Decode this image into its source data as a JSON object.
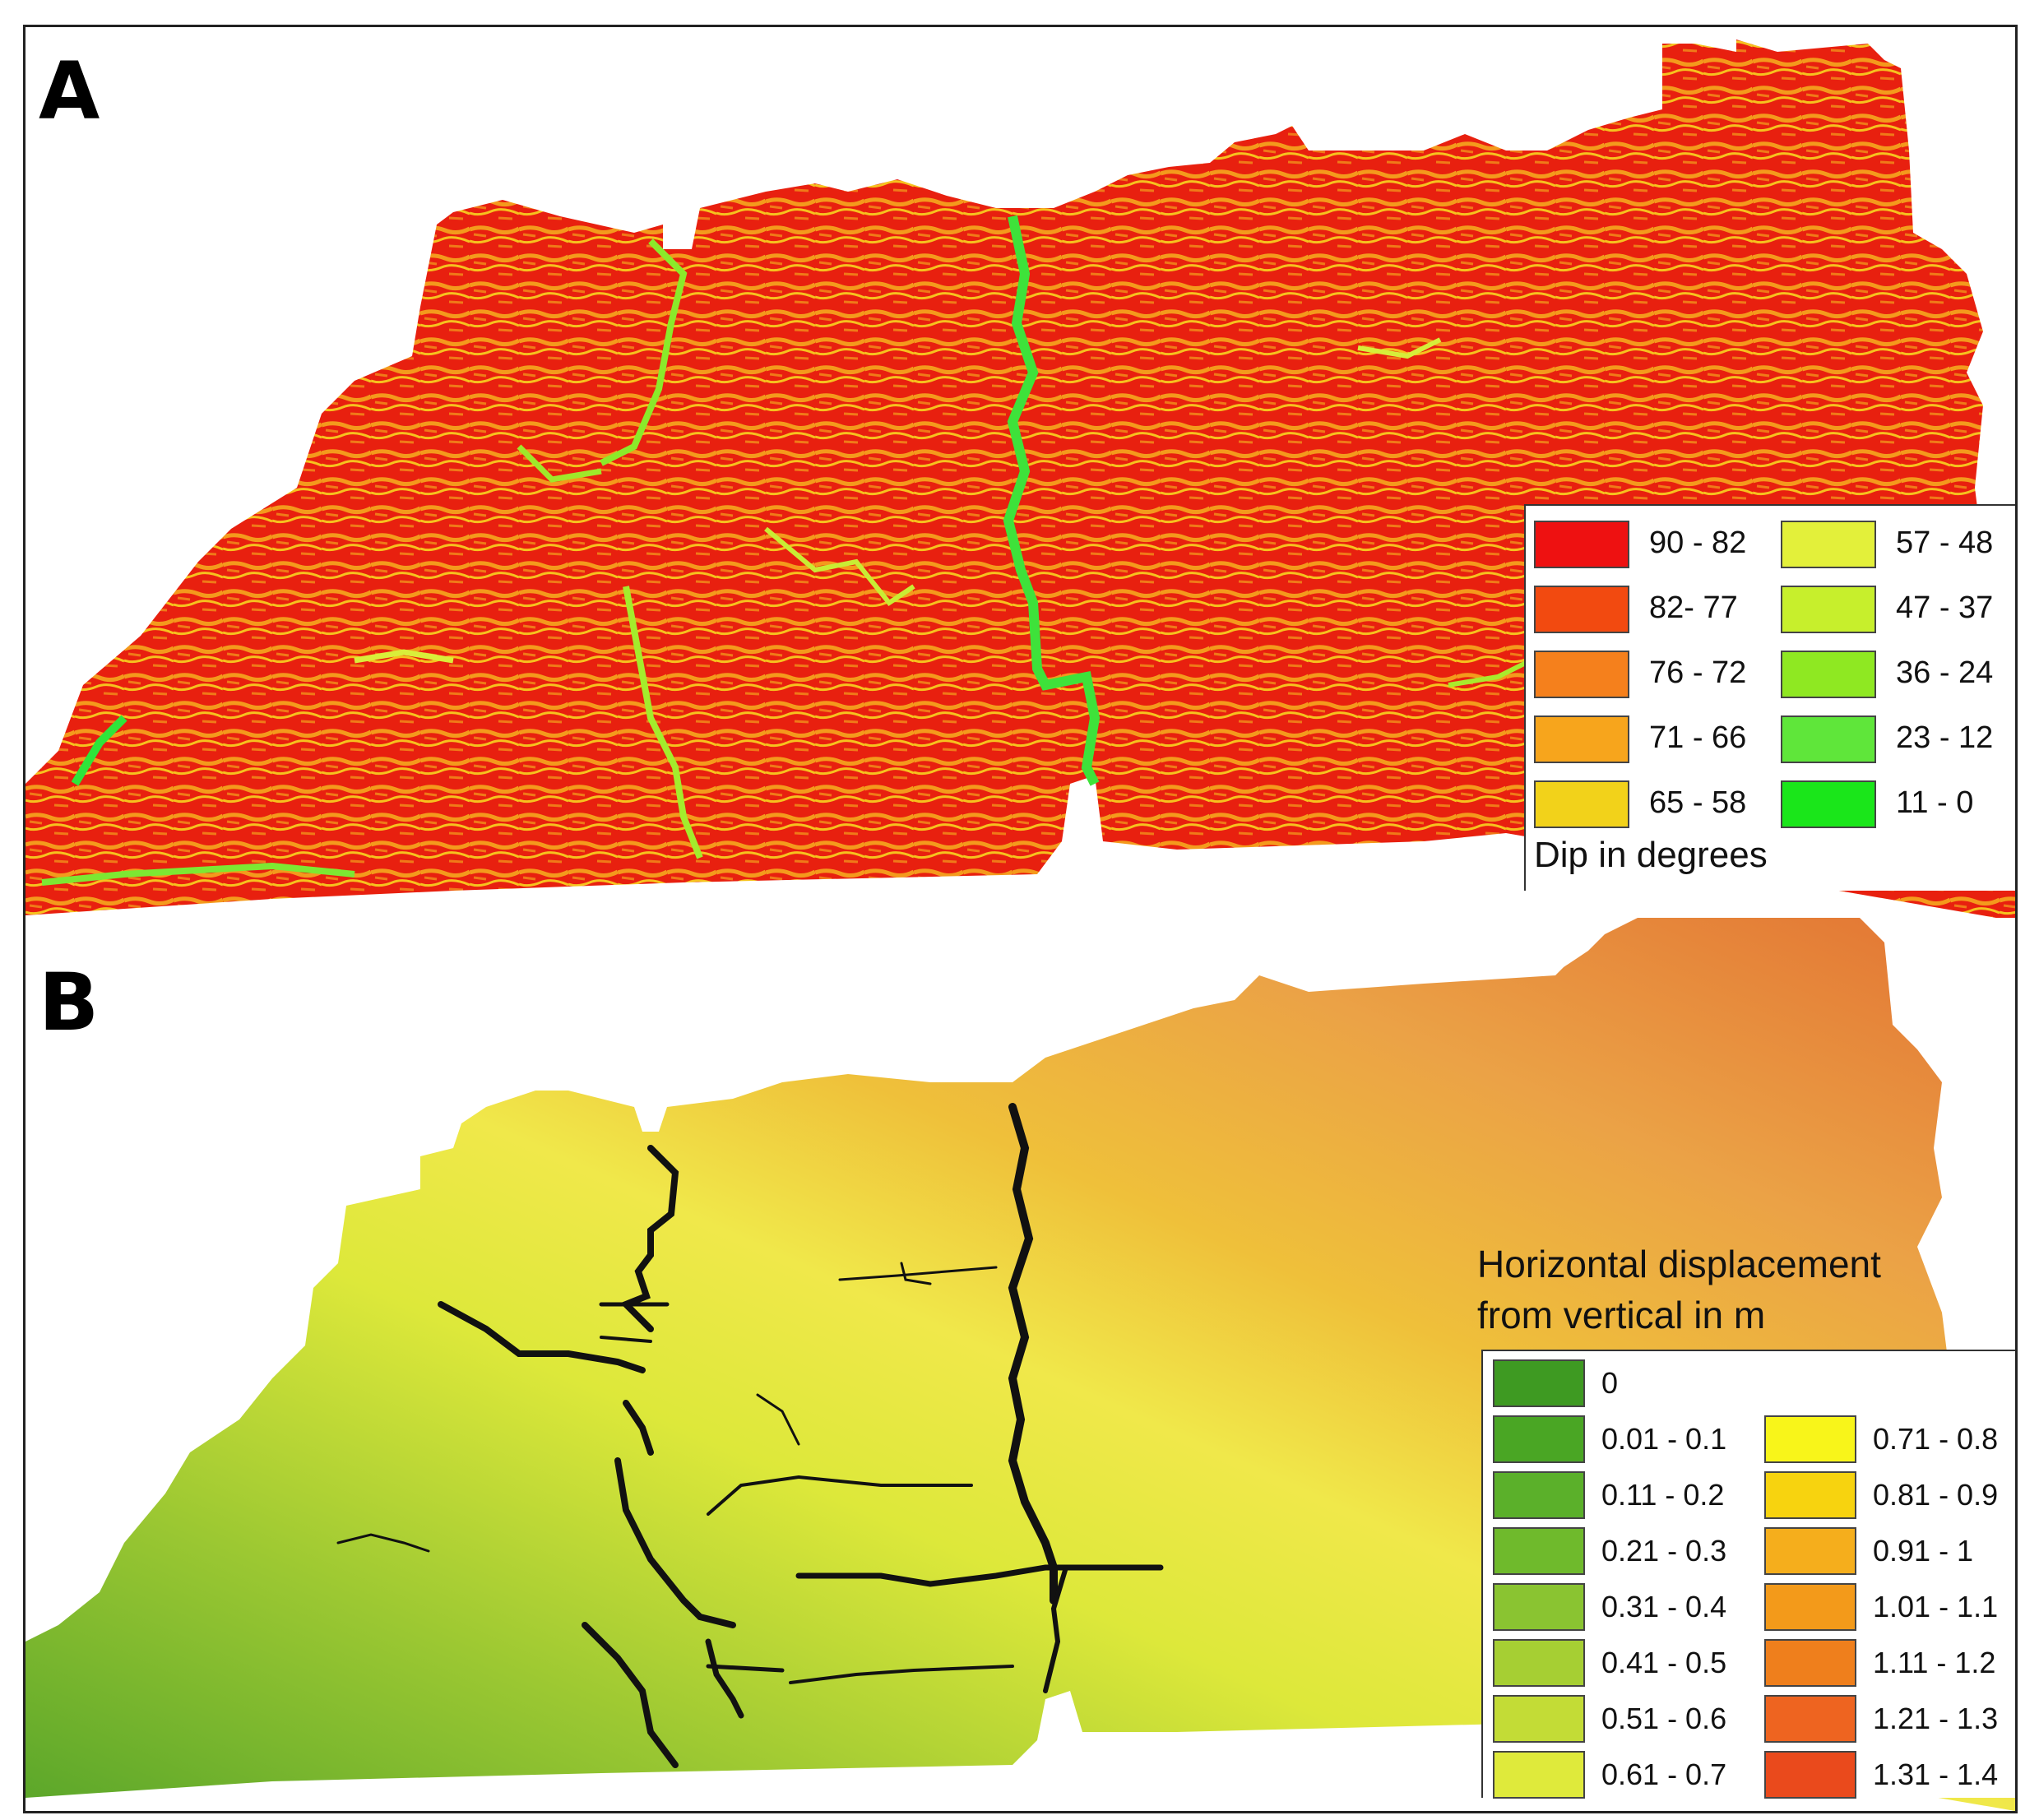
{
  "panel_a": {
    "label": "A",
    "legend_title": "Dip in degrees",
    "legend": [
      {
        "label": "90 - 82",
        "color": "#ee1111"
      },
      {
        "label": "82- 77",
        "color": "#f24a10"
      },
      {
        "label": "76 - 72",
        "color": "#f5801c"
      },
      {
        "label": "71 - 66",
        "color": "#f7a51c"
      },
      {
        "label": "65 - 58",
        "color": "#f2d21a"
      },
      {
        "label": "57 - 48",
        "color": "#e3f03a"
      },
      {
        "label": "47 - 37",
        "color": "#c7ef2c"
      },
      {
        "label": "36 - 24",
        "color": "#8fe822"
      },
      {
        "label": "23 - 12",
        "color": "#5fe63a"
      },
      {
        "label": "11 - 0",
        "color": "#1ae61a"
      }
    ]
  },
  "panel_b": {
    "label": "B",
    "legend_title_line1": "Horizontal displacement",
    "legend_title_line2": "from vertical in m",
    "legend": [
      {
        "label": "0",
        "color": "#3e9a22"
      },
      {
        "label": "0.01 - 0.1",
        "color": "#4aa624"
      },
      {
        "label": "0.11 - 0.2",
        "color": "#5bb02a"
      },
      {
        "label": "0.21 - 0.3",
        "color": "#6fba2c"
      },
      {
        "label": "0.31 - 0.4",
        "color": "#8ac431"
      },
      {
        "label": "0.41 - 0.5",
        "color": "#a6cf33"
      },
      {
        "label": "0.51 - 0.6",
        "color": "#c3dc36"
      },
      {
        "label": "0.61 - 0.7",
        "color": "#dfea3b"
      },
      {
        "label": "0.71 - 0.8",
        "color": "#f8f51a"
      },
      {
        "label": "0.81 - 0.9",
        "color": "#f7d30f"
      },
      {
        "label": "0.91 - 1",
        "color": "#f5ae1c"
      },
      {
        "label": "1.01 - 1.1",
        "color": "#f39a1a"
      },
      {
        "label": "1.11 - 1.2",
        "color": "#ef7f1c"
      },
      {
        "label": "1.21 - 1.3",
        "color": "#ee6420"
      },
      {
        "label": "1.31 - 1.4",
        "color": "#ea4a1c"
      }
    ]
  }
}
